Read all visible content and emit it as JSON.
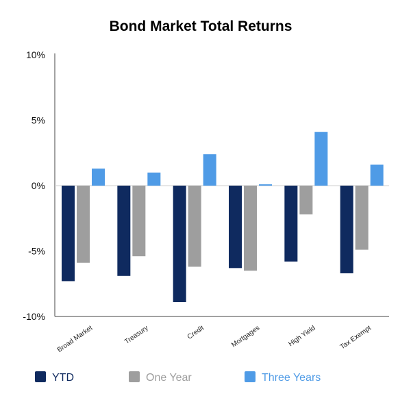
{
  "chart_data": {
    "type": "bar",
    "title": "Bond Market Total Returns",
    "xlabel": "",
    "ylabel": "",
    "ylim": [
      -10,
      10
    ],
    "y_ticks": [
      10,
      5,
      0,
      -5,
      -10
    ],
    "y_tick_labels": [
      "10%",
      "5%",
      "0%",
      "-5%",
      "-10%"
    ],
    "categories": [
      "Broad Market",
      "Treasury",
      "Credit",
      "Mortgages",
      "High Yield",
      "Tax Exempt"
    ],
    "series": [
      {
        "name": "YTD",
        "color": "#0f2a5f",
        "values": [
          -7.3,
          -6.9,
          -8.9,
          -6.3,
          -5.8,
          -6.7
        ]
      },
      {
        "name": "One Year",
        "color": "#9e9e9e",
        "values": [
          -5.9,
          -5.4,
          -6.2,
          -6.5,
          -2.2,
          -4.9
        ]
      },
      {
        "name": "Three Years",
        "color": "#4f9be6",
        "values": [
          1.3,
          1.0,
          2.4,
          0.1,
          4.1,
          1.6
        ]
      }
    ],
    "legend_position": "bottom",
    "grid": false
  }
}
